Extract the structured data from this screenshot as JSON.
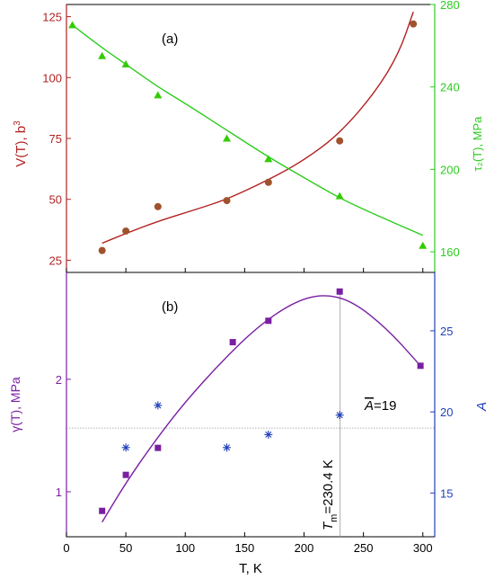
{
  "colors": {
    "axis": "#000000",
    "V_color": "#b22222",
    "V_point": "#a0522d",
    "tau_color": "#2ecc1f",
    "tau_point": "#33cc00",
    "gamma_color": "#7a1fa2",
    "A_color": "#1f3fb8",
    "guide_color": "#9a9a9a"
  },
  "chart_data": [
    {
      "id": "a",
      "type": "scatter",
      "panel_label": "(a)",
      "x": [
        30,
        50,
        77,
        135,
        170,
        230,
        292
      ],
      "xlim": [
        0,
        310
      ],
      "ylabel_left": "V(T), b",
      "ylabel_left_sup": "3",
      "ylim_left": [
        20,
        130
      ],
      "yticks_left": [
        "25",
        "50",
        "75",
        "100",
        "125"
      ],
      "ylabel_right": "τ₂(T), MPa",
      "ylim_right": [
        150,
        280
      ],
      "yticks_right": [
        "160",
        "200",
        "240",
        "280"
      ],
      "series": [
        {
          "key": "V",
          "axis": "left",
          "marker": "circle",
          "x": [
            30,
            50,
            77,
            135,
            170,
            230,
            292
          ],
          "values": [
            29,
            37,
            47,
            49.5,
            57,
            74,
            122
          ],
          "fit_x": [
            30,
            50,
            77,
            110,
            135,
            170,
            200,
            230,
            260,
            280,
            292
          ],
          "fit_y": [
            32,
            36,
            41,
            46,
            50,
            58,
            66,
            77,
            94,
            110,
            127
          ]
        },
        {
          "key": "tau2",
          "axis": "right",
          "marker": "triangle",
          "x": [
            5,
            30,
            50,
            77,
            135,
            170,
            230,
            300
          ],
          "values": [
            270,
            255,
            251,
            236,
            215,
            205,
            187,
            163
          ],
          "fit_x": [
            5,
            30,
            50,
            77,
            100,
            135,
            170,
            200,
            230,
            260,
            300
          ],
          "fit_y": [
            270,
            259,
            251,
            240,
            232,
            219,
            206,
            196,
            186,
            178,
            168
          ]
        }
      ]
    },
    {
      "id": "b",
      "type": "scatter",
      "panel_label": "(b)",
      "xlabel": "T, K",
      "xlim": [
        0,
        310
      ],
      "xticks": [
        "0",
        "50",
        "100",
        "150",
        "200",
        "250",
        "300"
      ],
      "ylabel_left": "γ(T), MPa",
      "ylim_left": [
        0.6,
        2.95
      ],
      "yticks_left": [
        "1",
        "2"
      ],
      "ylabel_right": "A",
      "ylim_right": [
        12.3,
        28.6
      ],
      "yticks_right": [
        "15",
        "20",
        "25"
      ],
      "series": [
        {
          "key": "gamma",
          "axis": "left",
          "marker": "square",
          "x": [
            30,
            50,
            77,
            140,
            170,
            230,
            298
          ],
          "values": [
            0.83,
            1.15,
            1.39,
            2.33,
            2.52,
            2.78,
            2.12
          ],
          "fit_x": [
            30,
            50,
            75,
            100,
            130,
            160,
            190,
            215,
            240,
            270,
            298
          ],
          "fit_y": [
            0.73,
            1.08,
            1.46,
            1.8,
            2.15,
            2.46,
            2.68,
            2.76,
            2.7,
            2.45,
            2.12
          ]
        },
        {
          "key": "A",
          "axis": "right",
          "marker": "asterisk",
          "x": [
            50,
            77,
            135,
            170,
            230
          ],
          "values": [
            17.8,
            20.4,
            17.8,
            18.6,
            19.8
          ]
        }
      ],
      "annotations": {
        "mean_A_value": 19,
        "mean_A_label": "A",
        "mean_A_text": "=19",
        "Tm_value": 230.4,
        "Tm_label_main": "T",
        "Tm_label_sub": "m",
        "Tm_label_tail": "=230.4 K"
      }
    }
  ]
}
